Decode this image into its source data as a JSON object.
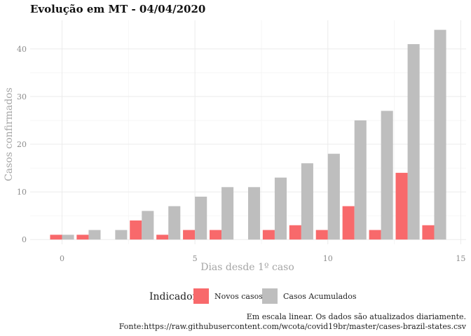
{
  "chart_data": {
    "type": "bar",
    "title": "Evolução em MT  -  04/04/2020",
    "xlabel": "Dias desde 1º caso",
    "ylabel": "Casos confirmados",
    "xlim": [
      -1.2,
      15.2
    ],
    "ylim": [
      -1,
      46
    ],
    "x_ticks": [
      0,
      5,
      10,
      15
    ],
    "y_ticks": [
      0,
      10,
      20,
      30,
      40
    ],
    "grid": true,
    "legend_position": "bottom",
    "legend_title": "Indicador",
    "categories": [
      0,
      1,
      2,
      3,
      4,
      5,
      6,
      7,
      8,
      9,
      10,
      11,
      12,
      13,
      14
    ],
    "series": [
      {
        "name": "Novos casos",
        "color": "#f8696b",
        "values": [
          1,
          1,
          0,
          4,
          1,
          2,
          2,
          0,
          2,
          3,
          2,
          7,
          2,
          14,
          3
        ]
      },
      {
        "name": "Casos Acumulados",
        "color": "#bebebe",
        "values": [
          1,
          2,
          2,
          6,
          7,
          9,
          11,
          11,
          13,
          16,
          18,
          25,
          27,
          41,
          44
        ]
      }
    ]
  },
  "caption": {
    "line1": "Em escala linear. Os dados são atualizados diariamente.",
    "line2": "Fonte:https://raw.githubusercontent.com/wcota/covid19br/master/cases-brazil-states.csv"
  }
}
